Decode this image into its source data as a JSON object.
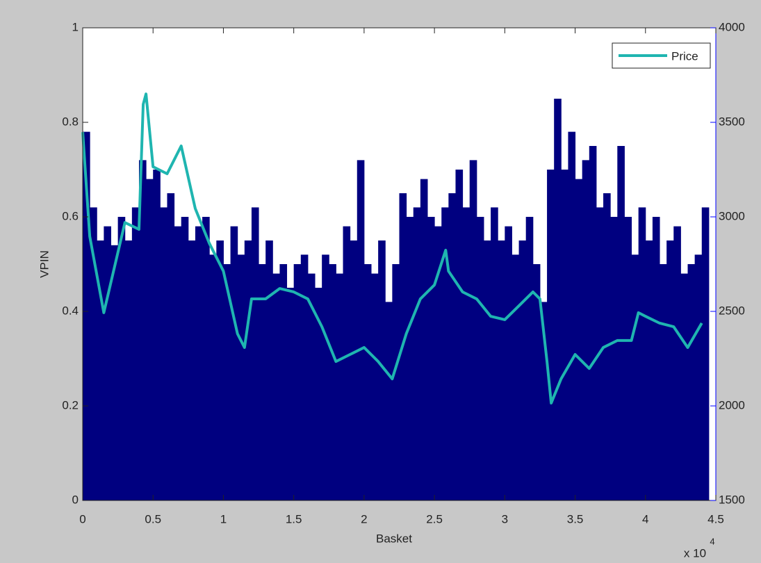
{
  "chart_data": {
    "type": "combo",
    "xlabel": "Basket",
    "ylabel": "VPIN",
    "x_multiplier": "x 10",
    "x_multiplier_exponent": "4",
    "xlim": [
      0,
      4.5
    ],
    "xticks": [
      0,
      0.5,
      1,
      1.5,
      2,
      2.5,
      3,
      3.5,
      4,
      4.5
    ],
    "ylim": [
      0,
      1
    ],
    "yticks": [
      0,
      0.2,
      0.4,
      0.6,
      0.8,
      1
    ],
    "y2lim": [
      1500,
      4000
    ],
    "y2ticks": [
      1500,
      2000,
      2500,
      3000,
      3500,
      4000
    ],
    "y2_color": "#0000ff",
    "grid": false,
    "legend": "upper right",
    "series": [
      {
        "type": "bar",
        "color": "#000080",
        "x": [
          0,
          0.05,
          0.1,
          0.15,
          0.2,
          0.25,
          0.3,
          0.35,
          0.4,
          0.45,
          0.5,
          0.55,
          0.6,
          0.65,
          0.7,
          0.75,
          0.8,
          0.85,
          0.9,
          0.95,
          1,
          1.05,
          1.1,
          1.15,
          1.2,
          1.25,
          1.3,
          1.35,
          1.4,
          1.45,
          1.5,
          1.55,
          1.6,
          1.65,
          1.7,
          1.75,
          1.8,
          1.85,
          1.9,
          1.95,
          2,
          2.05,
          2.1,
          2.15,
          2.2,
          2.25,
          2.3,
          2.35,
          2.4,
          2.45,
          2.5,
          2.55,
          2.6,
          2.65,
          2.7,
          2.75,
          2.8,
          2.85,
          2.9,
          2.95,
          3,
          3.05,
          3.1,
          3.15,
          3.2,
          3.25,
          3.3,
          3.35,
          3.4,
          3.45,
          3.5,
          3.55,
          3.6,
          3.65,
          3.7,
          3.75,
          3.8,
          3.85,
          3.9,
          3.95,
          4,
          4.05,
          4.1,
          4.15,
          4.2,
          4.25,
          4.3,
          4.35,
          4.4
        ],
        "values": [
          0.78,
          0.62,
          0.55,
          0.58,
          0.54,
          0.6,
          0.55,
          0.62,
          0.72,
          0.68,
          0.7,
          0.62,
          0.65,
          0.58,
          0.6,
          0.55,
          0.58,
          0.6,
          0.52,
          0.55,
          0.5,
          0.58,
          0.52,
          0.55,
          0.62,
          0.5,
          0.55,
          0.48,
          0.5,
          0.45,
          0.5,
          0.52,
          0.48,
          0.45,
          0.52,
          0.5,
          0.48,
          0.58,
          0.55,
          0.72,
          0.5,
          0.48,
          0.55,
          0.42,
          0.5,
          0.65,
          0.6,
          0.62,
          0.68,
          0.6,
          0.58,
          0.62,
          0.65,
          0.7,
          0.62,
          0.72,
          0.6,
          0.55,
          0.62,
          0.55,
          0.58,
          0.52,
          0.55,
          0.6,
          0.5,
          0.42,
          0.7,
          0.85,
          0.7,
          0.78,
          0.68,
          0.72,
          0.75,
          0.62,
          0.65,
          0.6,
          0.75,
          0.6,
          0.52,
          0.62,
          0.55,
          0.6,
          0.5,
          0.55,
          0.58,
          0.48,
          0.5,
          0.52,
          0.62
        ]
      },
      {
        "type": "line",
        "name": "Price",
        "color": "#1fb5b0",
        "axis": "y2",
        "x": [
          0,
          0.05,
          0.15,
          0.3,
          0.4,
          0.43,
          0.45,
          0.5,
          0.6,
          0.7,
          0.8,
          0.9,
          1,
          1.1,
          1.15,
          1.2,
          1.3,
          1.4,
          1.5,
          1.6,
          1.7,
          1.8,
          1.9,
          2,
          2.1,
          2.2,
          2.3,
          2.4,
          2.5,
          2.58,
          2.6,
          2.7,
          2.8,
          2.9,
          3,
          3.1,
          3.2,
          3.25,
          3.3,
          3.33,
          3.4,
          3.5,
          3.6,
          3.7,
          3.8,
          3.9,
          3.95,
          4,
          4.1,
          4.2,
          4.3,
          4.4
        ],
        "values": [
          3448,
          2897,
          2493,
          2970,
          2934,
          3595,
          3650,
          3265,
          3228,
          3375,
          3044,
          2860,
          2713,
          2382,
          2309,
          2566,
          2566,
          2621,
          2603,
          2566,
          2419,
          2235,
          2272,
          2309,
          2235,
          2143,
          2382,
          2566,
          2640,
          2824,
          2713,
          2603,
          2566,
          2474,
          2456,
          2529,
          2603,
          2566,
          2235,
          2015,
          2143,
          2272,
          2198,
          2309,
          2346,
          2346,
          2493,
          2474,
          2438,
          2419,
          2309,
          2438
        ]
      }
    ]
  }
}
